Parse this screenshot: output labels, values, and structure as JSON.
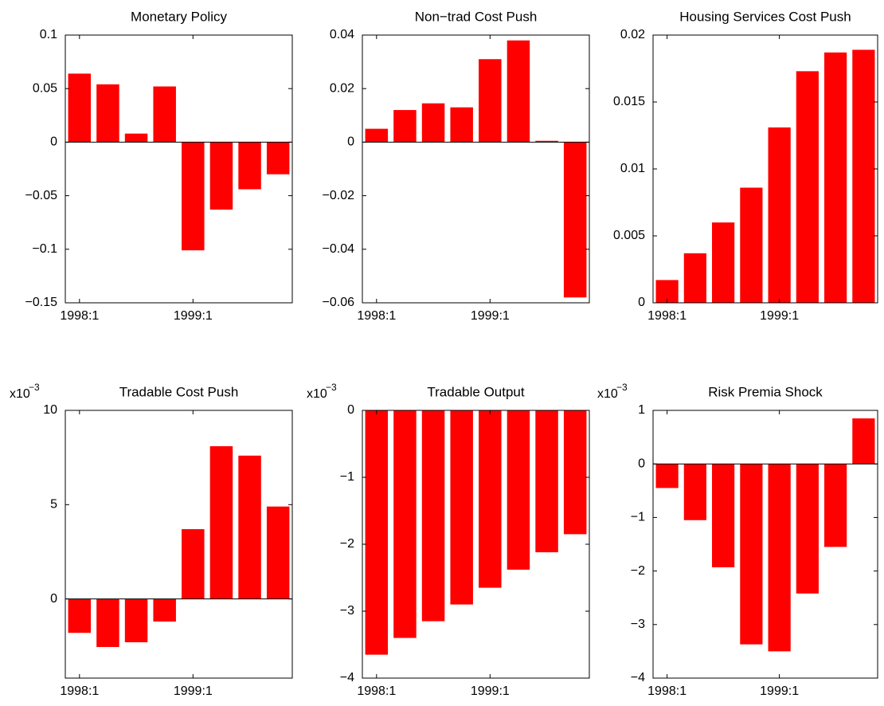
{
  "chart_data": [
    {
      "type": "bar",
      "title": "Monetary Policy",
      "color": "#ff0000",
      "categories": [
        "1998:1",
        null,
        null,
        null,
        "1999:1",
        null,
        null,
        null
      ],
      "values": [
        0.064,
        0.054,
        0.008,
        0.052,
        -0.101,
        -0.063,
        -0.044,
        -0.03
      ],
      "ylim": [
        -0.15,
        0.1
      ],
      "yticks": [
        {
          "value": -0.15,
          "label": "−0.15"
        },
        {
          "value": -0.1,
          "label": "−0.1"
        },
        {
          "value": -0.05,
          "label": "−0.05"
        },
        0,
        0.05,
        0.1
      ]
    },
    {
      "type": "bar",
      "title": "Non−trad Cost Push",
      "color": "#ff0000",
      "categories": [
        "1998:1",
        null,
        null,
        null,
        "1999:1",
        null,
        null,
        null
      ],
      "values": [
        0.005,
        0.012,
        0.0145,
        0.013,
        0.031,
        0.038,
        0.0005,
        -0.058
      ],
      "ylim": [
        -0.06,
        0.04
      ],
      "yticks": [
        {
          "value": -0.06,
          "label": "−0.06"
        },
        {
          "value": -0.04,
          "label": "−0.04"
        },
        {
          "value": -0.02,
          "label": "−0.02"
        },
        0,
        0.02,
        0.04
      ]
    },
    {
      "type": "bar",
      "title": "Housing Services Cost Push",
      "color": "#ff0000",
      "categories": [
        "1998:1",
        null,
        null,
        null,
        "1999:1",
        null,
        null,
        null
      ],
      "values": [
        0.0017,
        0.0037,
        0.006,
        0.0086,
        0.0131,
        0.0173,
        0.0187,
        0.0189
      ],
      "ylim": [
        0,
        0.02
      ],
      "yticks": [
        0,
        0.005,
        0.01,
        0.015,
        0.02
      ]
    },
    {
      "type": "bar",
      "title": "Tradable Cost Push",
      "color": "#ff0000",
      "y_multiplier": "x10",
      "y_multiplier_exponent": "−3",
      "categories": [
        "1998:1",
        null,
        null,
        null,
        "1999:1",
        null,
        null,
        null
      ],
      "values": [
        -1.8,
        -2.55,
        -2.3,
        -1.2,
        3.7,
        8.1,
        7.6,
        4.9
      ],
      "ylim": [
        -4.2,
        10
      ],
      "yticks": [
        0,
        5,
        10
      ]
    },
    {
      "type": "bar",
      "title": "Tradable Output",
      "color": "#ff0000",
      "y_multiplier": "x10",
      "y_multiplier_exponent": "−3",
      "categories": [
        "1998:1",
        null,
        null,
        null,
        "1999:1",
        null,
        null,
        null
      ],
      "values": [
        -3.65,
        -3.4,
        -3.15,
        -2.9,
        -2.65,
        -2.38,
        -2.12,
        -1.85
      ],
      "ylim": [
        -4,
        0
      ],
      "yticks": [
        {
          "value": -4,
          "label": "−4"
        },
        {
          "value": -3,
          "label": "−3"
        },
        {
          "value": -2,
          "label": "−2"
        },
        {
          "value": -1,
          "label": "−1"
        },
        0
      ]
    },
    {
      "type": "bar",
      "title": "Risk Premia Shock",
      "color": "#ff0000",
      "y_multiplier": "x10",
      "y_multiplier_exponent": "−3",
      "categories": [
        "1998:1",
        null,
        null,
        null,
        "1999:1",
        null,
        null,
        null
      ],
      "values": [
        -0.45,
        -1.05,
        -1.93,
        -3.37,
        -3.5,
        -2.42,
        -1.55,
        0.85
      ],
      "ylim": [
        -4,
        1
      ],
      "yticks": [
        {
          "value": -4,
          "label": "−4"
        },
        {
          "value": -3,
          "label": "−3"
        },
        {
          "value": -2,
          "label": "−2"
        },
        {
          "value": -1,
          "label": "−1"
        },
        0,
        1
      ]
    }
  ]
}
